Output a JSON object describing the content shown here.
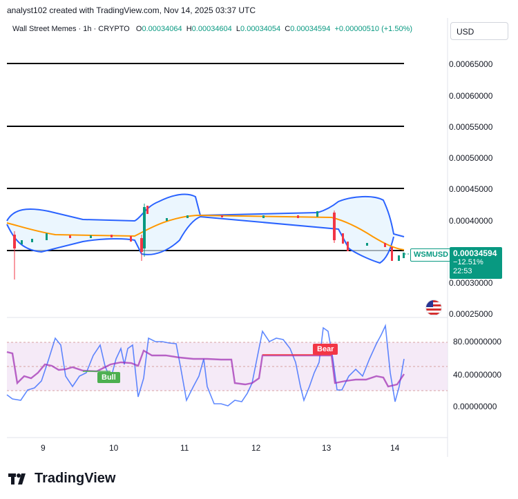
{
  "header": {
    "caption": "analyst102 created with TradingView.com, Nov 14, 2025 03:37 UTC"
  },
  "legend": {
    "symbol": "Wall Street Memes · 1h · CRYPTO",
    "open_label": "O",
    "open": "0.00034064",
    "high_label": "H",
    "high": "0.00034604",
    "low_label": "L",
    "low": "0.00034054",
    "close_label": "C",
    "close": "0.00034594",
    "change": "+0.00000510 (+1.50%)"
  },
  "currency": "USD",
  "price_axis": [
    "0.00065000",
    "0.00060000",
    "0.00055000",
    "0.00050000",
    "0.00045000",
    "0.00040000",
    "0.00030000",
    "0.00025000"
  ],
  "current": {
    "ticker": "WSMUSD",
    "price": "0.00034594",
    "change_pct": "−12.51%",
    "countdown": "22:53"
  },
  "oscillator_axis": [
    "80.00000000",
    "40.00000000",
    "0.00000000"
  ],
  "time_axis": [
    "9",
    "10",
    "11",
    "12",
    "13",
    "14"
  ],
  "signals": {
    "bull": "Bull",
    "bear": "Bear"
  },
  "brand": {
    "name": "TradingView"
  },
  "colors": {
    "up": "#089981",
    "down": "#f23645",
    "band": "#2962ff",
    "basis": "#ff9800",
    "stoch": "#9c27b0"
  },
  "chart_data": {
    "type": "line",
    "title": "",
    "x_ticks": [
      "9",
      "10",
      "11",
      "12",
      "13",
      "14"
    ],
    "y_ticks": [
      0.00065,
      0.0006,
      0.00055,
      0.0005,
      0.00045,
      0.0004,
      0.0003,
      0.00025
    ],
    "horizontal_levels": [
      0.00065,
      0.00055,
      0.00045,
      0.000355
    ],
    "last_close": 0.00034594,
    "oscillator_ticks": [
      80,
      40,
      0
    ],
    "oscillator_band": [
      20,
      80
    ],
    "grid": false
  }
}
